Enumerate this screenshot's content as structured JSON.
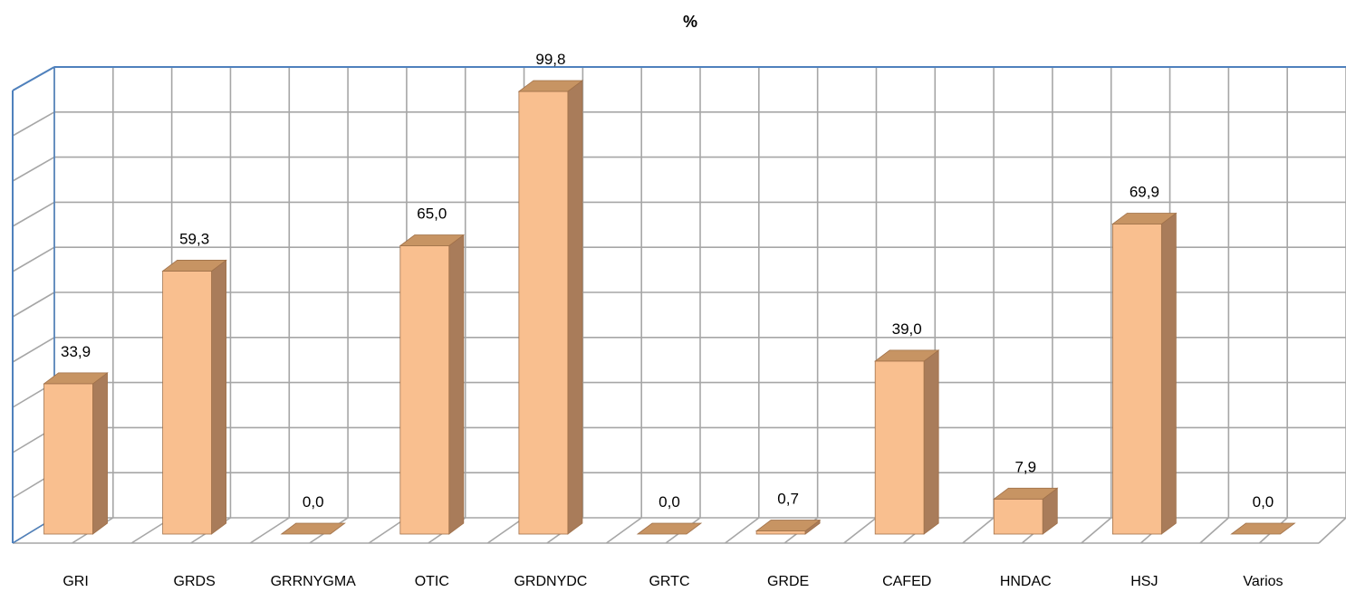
{
  "chart_data": {
    "type": "bar",
    "title": "%",
    "xlabel": "",
    "ylabel": "",
    "categories": [
      "GRI",
      "GRDS",
      "GRRNYGMA",
      "OTIC",
      "GRDNYDC",
      "GRTC",
      "GRDE",
      "CAFED",
      "HNDAC",
      "HSJ",
      "Varios"
    ],
    "values": [
      33.9,
      59.3,
      0.0,
      65.0,
      99.8,
      0.0,
      0.7,
      39.0,
      7.9,
      69.9,
      0.0
    ],
    "value_labels": [
      "33,9",
      "59,3",
      "0,0",
      "65,0",
      "99,8",
      "0,0",
      "0,7",
      "39,0",
      "7,9",
      "69,9",
      "0,0"
    ],
    "ylim": [
      0,
      100
    ],
    "grid": true,
    "legend": "none",
    "style": "3d-column",
    "colors": {
      "bar_front": "#f9bf8f",
      "bar_side": "#a97c5a",
      "bar_top": "#c79463",
      "bar_edge": "#a0714a",
      "grid": "#a6a6a6",
      "axis": "#4f81bd"
    }
  }
}
